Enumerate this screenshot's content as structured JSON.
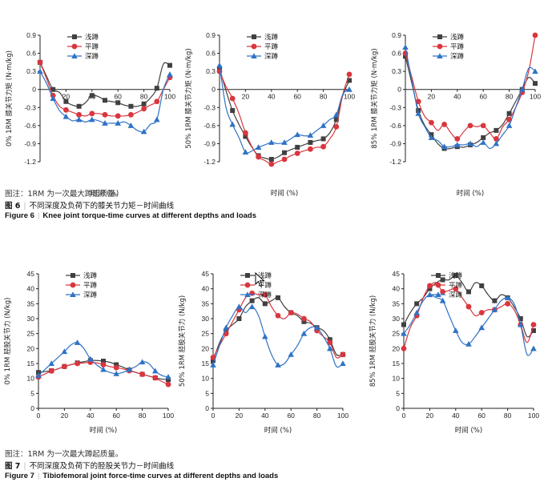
{
  "colors": {
    "s1": "#404040",
    "s2": "#d9363e",
    "s3": "#2f73c6"
  },
  "legend": [
    "浅蹲",
    "平蹲",
    "深蹲"
  ],
  "xlabel": "时间 (%)",
  "fig6": {
    "note": "图注：1RM 为一次最大蹲起质量。",
    "num_cn": "图 6",
    "title_cn": "不同深度及负荷下的膝关节力矩－时间曲线",
    "num_en": "Figure 6",
    "title_en": "Knee joint torque-time curves at different depths and loads"
  },
  "fig7": {
    "note": "图注：1RM 为一次最大蹲起质量。",
    "num_cn": "图 7",
    "title_cn": "不同深度及负荷下的胫股关节力－时间曲线",
    "num_en": "Figure 7",
    "title_en": "Tibiofemoral joint force-time curves at different depths and loads"
  },
  "chart_data": [
    {
      "type": "line",
      "ylabel": "0% 1RM 膝关节力矩 (N·m/kg)",
      "ylim": [
        -1.2,
        0.9
      ],
      "yticks": [
        0.9,
        0.6,
        0.3,
        0,
        -0.3,
        -0.6,
        -0.9,
        -1.2
      ],
      "xlim": [
        0,
        100
      ],
      "xticks": [
        20,
        40,
        60,
        80,
        100
      ],
      "xaxis_at_zero": true,
      "x": [
        0,
        5,
        10,
        15,
        20,
        25,
        30,
        35,
        40,
        45,
        50,
        55,
        60,
        65,
        70,
        75,
        80,
        85,
        90,
        95,
        100
      ],
      "series": [
        {
          "name": "浅蹲",
          "values": [
            0.45,
            0.22,
            0.0,
            -0.05,
            -0.2,
            -0.26,
            -0.28,
            -0.22,
            -0.1,
            -0.12,
            -0.18,
            -0.2,
            -0.22,
            -0.26,
            -0.28,
            -0.28,
            -0.24,
            -0.14,
            0.02,
            0.42,
            0.4
          ]
        },
        {
          "name": "平蹲",
          "values": [
            0.45,
            0.18,
            -0.1,
            -0.28,
            -0.34,
            -0.38,
            -0.42,
            -0.44,
            -0.4,
            -0.4,
            -0.42,
            -0.44,
            -0.44,
            -0.44,
            -0.42,
            -0.38,
            -0.32,
            -0.26,
            -0.2,
            0.0,
            0.2
          ]
        },
        {
          "name": "深蹲",
          "values": [
            0.3,
            0.1,
            -0.15,
            -0.35,
            -0.45,
            -0.52,
            -0.5,
            -0.54,
            -0.5,
            -0.52,
            -0.56,
            -0.56,
            -0.56,
            -0.54,
            -0.6,
            -0.68,
            -0.7,
            -0.58,
            -0.5,
            0.0,
            0.25
          ]
        }
      ]
    },
    {
      "type": "line",
      "ylabel": "50% 1RM 膝关节力矩 (N·m/kg)",
      "ylim": [
        -1.2,
        0.9
      ],
      "yticks": [
        0.9,
        0.6,
        0.3,
        0,
        -0.3,
        -0.6,
        -0.9,
        -1.2
      ],
      "xlim": [
        0,
        100
      ],
      "xticks": [
        20,
        40,
        60,
        80,
        100
      ],
      "xaxis_at_zero": true,
      "x": [
        0,
        5,
        10,
        15,
        20,
        25,
        30,
        35,
        40,
        45,
        50,
        55,
        60,
        65,
        70,
        75,
        80,
        85,
        90,
        95,
        100
      ],
      "series": [
        {
          "name": "浅蹲",
          "values": [
            0.35,
            -0.02,
            -0.35,
            -0.58,
            -0.78,
            -0.96,
            -1.1,
            -1.14,
            -1.16,
            -1.12,
            -1.05,
            -1.0,
            -0.96,
            -0.92,
            -0.88,
            -0.85,
            -0.82,
            -0.72,
            -0.5,
            -0.1,
            0.15
          ]
        },
        {
          "name": "平蹲",
          "values": [
            0.3,
            0.05,
            -0.15,
            -0.4,
            -0.72,
            -0.95,
            -1.12,
            -1.18,
            -1.24,
            -1.2,
            -1.16,
            -1.1,
            -1.06,
            -1.02,
            -0.99,
            -0.96,
            -0.95,
            -0.82,
            -0.62,
            -0.08,
            0.25
          ]
        },
        {
          "name": "深蹲",
          "values": [
            0.4,
            -0.3,
            -0.58,
            -0.8,
            -1.04,
            -1.02,
            -0.96,
            -0.92,
            -0.88,
            -0.9,
            -0.88,
            -0.82,
            -0.75,
            -0.77,
            -0.76,
            -0.68,
            -0.6,
            -0.5,
            -0.42,
            -0.08,
            0.0
          ]
        }
      ]
    },
    {
      "type": "line",
      "ylabel": "85% 1RM 膝关节力矩 (N·m/kg)",
      "ylim": [
        -1.2,
        0.9
      ],
      "yticks": [
        0.9,
        0.6,
        0.3,
        0,
        -0.3,
        -0.6,
        -0.9,
        -1.2
      ],
      "xlim": [
        0,
        100
      ],
      "xticks": [
        20,
        40,
        60,
        80,
        100
      ],
      "xaxis_at_zero": true,
      "x": [
        0,
        5,
        10,
        15,
        20,
        25,
        30,
        35,
        40,
        45,
        50,
        55,
        60,
        65,
        70,
        75,
        80,
        85,
        90,
        95,
        100
      ],
      "series": [
        {
          "name": "浅蹲",
          "values": [
            0.55,
            0.1,
            -0.35,
            -0.6,
            -0.75,
            -0.9,
            -0.98,
            -0.98,
            -0.95,
            -0.96,
            -0.92,
            -0.88,
            -0.8,
            -0.72,
            -0.68,
            -0.58,
            -0.4,
            -0.2,
            0.0,
            0.2,
            0.1
          ]
        },
        {
          "name": "平蹲",
          "values": [
            0.6,
            0.2,
            -0.2,
            -0.45,
            -0.55,
            -0.68,
            -0.58,
            -0.72,
            -0.82,
            -0.7,
            -0.6,
            -0.62,
            -0.6,
            -0.72,
            -0.82,
            -0.62,
            -0.5,
            -0.3,
            -0.05,
            0.3,
            0.9
          ]
        },
        {
          "name": "深蹲",
          "values": [
            0.7,
            0.15,
            -0.4,
            -0.62,
            -0.8,
            -0.85,
            -0.95,
            -0.95,
            -0.92,
            -0.92,
            -0.9,
            -0.95,
            -0.88,
            -0.98,
            -0.9,
            -0.75,
            -0.6,
            -0.3,
            0.0,
            0.35,
            0.3
          ]
        }
      ]
    },
    {
      "type": "line",
      "ylabel": "0% 1RM 胫股关节力 (N/kg)",
      "ylim": [
        0,
        45
      ],
      "yticks": [
        0,
        5,
        10,
        15,
        20,
        25,
        30,
        35,
        40,
        45
      ],
      "xlim": [
        0,
        100
      ],
      "xticks": [
        0,
        20,
        40,
        60,
        80,
        100
      ],
      "xaxis_at_zero": false,
      "x": [
        0,
        5,
        10,
        15,
        20,
        25,
        30,
        35,
        40,
        45,
        50,
        55,
        60,
        65,
        70,
        75,
        80,
        85,
        90,
        95,
        100
      ],
      "series": [
        {
          "name": "浅蹲",
          "values": [
            12,
            12.3,
            12.6,
            13.2,
            14,
            14.6,
            15.2,
            15.6,
            16,
            16,
            15.8,
            15.4,
            14.6,
            13.8,
            12.8,
            12,
            11.4,
            10.8,
            10.2,
            9.8,
            9.6
          ]
        },
        {
          "name": "平蹲",
          "values": [
            10.5,
            11.5,
            12.5,
            13.2,
            14,
            14.6,
            15,
            15.2,
            15.4,
            15.2,
            14.6,
            14,
            13.6,
            13.2,
            12.6,
            12,
            11.4,
            10.8,
            10.2,
            9,
            8
          ]
        },
        {
          "name": "深蹲",
          "values": [
            11,
            13,
            15,
            17,
            19,
            21.2,
            22,
            20,
            16.5,
            14.5,
            13,
            12,
            11.6,
            12,
            13,
            14,
            15.5,
            15,
            12.5,
            11,
            10.5
          ]
        }
      ]
    },
    {
      "type": "line",
      "ylabel": "50% 1RM 胫股关节力 (N/kg)",
      "ylim": [
        0,
        45
      ],
      "yticks": [
        0,
        5,
        10,
        15,
        20,
        25,
        30,
        35,
        40,
        45
      ],
      "xlim": [
        0,
        100
      ],
      "xticks": [
        0,
        20,
        40,
        60,
        80,
        100
      ],
      "xaxis_at_zero": false,
      "x": [
        0,
        5,
        10,
        15,
        20,
        25,
        30,
        35,
        40,
        45,
        50,
        55,
        60,
        65,
        70,
        75,
        80,
        85,
        90,
        95,
        100
      ],
      "series": [
        {
          "name": "浅蹲",
          "values": [
            16,
            22,
            26,
            28,
            30,
            34,
            36,
            37,
            35,
            36,
            37,
            34,
            32,
            31,
            29,
            28.5,
            27,
            26,
            23,
            18,
            18
          ]
        },
        {
          "name": "平蹲",
          "values": [
            17,
            21,
            25,
            29,
            33,
            37,
            38.5,
            38,
            38,
            34,
            31,
            30,
            32,
            31.5,
            30,
            29,
            26,
            24,
            22,
            17,
            18
          ]
        },
        {
          "name": "深蹲",
          "values": [
            14.5,
            21,
            27,
            31,
            34,
            32,
            34,
            31,
            24,
            18,
            14.5,
            15,
            18,
            21,
            25,
            27,
            27,
            24,
            20,
            14,
            15
          ]
        }
      ]
    },
    {
      "type": "line",
      "ylabel": "85% 1RM 胫股关节力 (N/kg)",
      "ylim": [
        0,
        45
      ],
      "yticks": [
        0,
        5,
        10,
        15,
        20,
        25,
        30,
        35,
        40,
        45
      ],
      "xlim": [
        0,
        100
      ],
      "xticks": [
        0,
        20,
        40,
        60,
        80,
        100
      ],
      "xaxis_at_zero": false,
      "x": [
        0,
        5,
        10,
        15,
        20,
        25,
        30,
        35,
        40,
        45,
        50,
        55,
        60,
        65,
        70,
        75,
        80,
        85,
        90,
        95,
        100
      ],
      "series": [
        {
          "name": "浅蹲",
          "values": [
            28,
            32,
            35,
            37,
            40,
            42,
            43,
            43,
            44.5,
            42,
            39,
            42,
            41,
            38,
            36,
            38,
            37,
            34,
            30,
            24,
            26
          ]
        },
        {
          "name": "平蹲",
          "values": [
            20,
            27,
            31,
            37,
            41,
            42,
            39,
            39.5,
            40,
            37,
            34,
            31,
            32,
            33,
            33,
            34,
            35,
            33,
            28,
            22,
            28
          ]
        },
        {
          "name": "深蹲",
          "values": [
            25,
            28,
            32,
            36,
            38,
            37,
            36,
            31,
            26,
            22,
            21.5,
            24,
            27,
            30,
            33,
            36,
            37,
            35,
            28,
            18,
            20
          ]
        }
      ]
    }
  ]
}
